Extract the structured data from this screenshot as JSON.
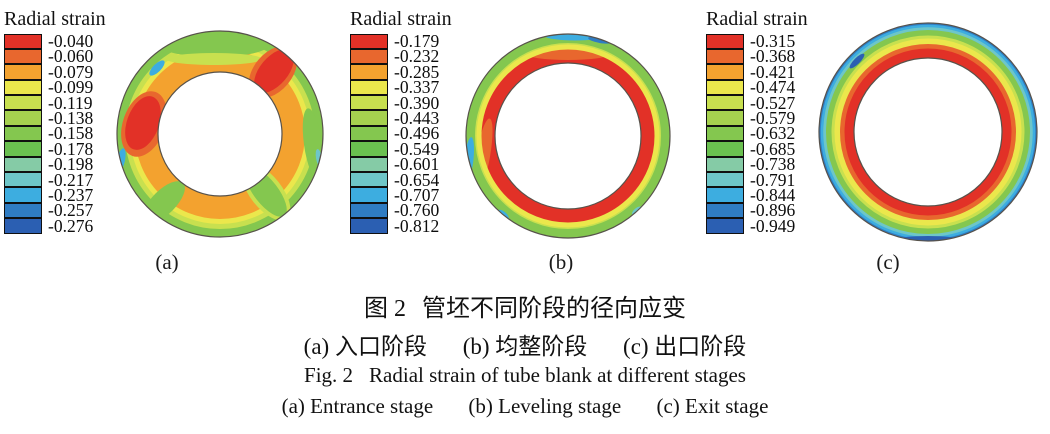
{
  "palette": [
    "#e23127",
    "#e8672e",
    "#f3a22f",
    "#ebe74c",
    "#c8e04f",
    "#a6d14f",
    "#84c74f",
    "#6ac050",
    "#85cba6",
    "#6ec6c8",
    "#3dade0",
    "#2f7cc3",
    "#2b5fb2"
  ],
  "outline_color": "#57524b",
  "panels": [
    {
      "key": "a",
      "sub_label": "(a)",
      "legend_title": "Radial strain",
      "legend_values": [
        "-0.040",
        "-0.060",
        "-0.079",
        "-0.099",
        "-0.119",
        "-0.138",
        "-0.158",
        "-0.178",
        "-0.198",
        "-0.217",
        "-0.237",
        "-0.257",
        "-0.276"
      ]
    },
    {
      "key": "b",
      "sub_label": "(b)",
      "legend_title": "Radial strain",
      "legend_values": [
        "-0.179",
        "-0.232",
        "-0.285",
        "-0.337",
        "-0.390",
        "-0.443",
        "-0.496",
        "-0.549",
        "-0.601",
        "-0.654",
        "-0.707",
        "-0.760",
        "-0.812"
      ]
    },
    {
      "key": "c",
      "sub_label": "(c)",
      "legend_title": "Radial strain",
      "legend_values": [
        "-0.315",
        "-0.368",
        "-0.421",
        "-0.474",
        "-0.527",
        "-0.579",
        "-0.632",
        "-0.685",
        "-0.738",
        "-0.791",
        "-0.844",
        "-0.896",
        "-0.949"
      ]
    }
  ],
  "captions": {
    "zh_fig_label": "图 2",
    "zh_title": "管坯不同阶段的径向应变",
    "zh_sub": [
      "(a) 入口阶段",
      "(b) 均整阶段",
      "(c) 出口阶段"
    ],
    "en_fig_label": "Fig. 2",
    "en_title": "Radial strain of tube blank at different stages",
    "en_sub": [
      "(a) Entrance stage",
      "(b) Leveling stage",
      "(c) Exit stage"
    ]
  },
  "chart_data": [
    {
      "type": "heatmap",
      "title": "Radial strain",
      "panel": "(a)",
      "stage_zh": "入口阶段",
      "stage_en": "Entrance stage",
      "geometry": "tube ring cross-section contour plot",
      "levels": [
        -0.04,
        -0.06,
        -0.079,
        -0.099,
        -0.119,
        -0.138,
        -0.158,
        -0.178,
        -0.198,
        -0.217,
        -0.237,
        -0.257,
        -0.276
      ],
      "range": [
        -0.276,
        -0.04
      ],
      "legend_position": "left",
      "distribution": "ring mostly orange (~-0.08 to -0.10) in inner two-thirds, green rim (~-0.14 to -0.18) on outer surface, red maxima (~-0.04 to -0.06) at left mid-wall and upper-right through-wall, small cyan spots (~-0.22) on outer edge"
    },
    {
      "type": "heatmap",
      "title": "Radial strain",
      "panel": "(b)",
      "stage_zh": "均整阶段",
      "stage_en": "Leveling stage",
      "geometry": "tube ring cross-section contour plot",
      "levels": [
        -0.179,
        -0.232,
        -0.285,
        -0.337,
        -0.39,
        -0.443,
        -0.496,
        -0.549,
        -0.601,
        -0.654,
        -0.707,
        -0.76,
        -0.812
      ],
      "range": [
        -0.812,
        -0.179
      ],
      "legend_position": "left",
      "distribution": "thick red band (~-0.18 to -0.23) over inner two-thirds of wall, thin yellow transition, green outer band (~-0.44 to -0.55), cyan/blue patches (~-0.71 to -0.76) on outer edge at top and left"
    },
    {
      "type": "heatmap",
      "title": "Radial strain",
      "panel": "(c)",
      "stage_zh": "出口阶段",
      "stage_en": "Exit stage",
      "geometry": "tube ring cross-section contour plot",
      "levels": [
        -0.315,
        -0.368,
        -0.421,
        -0.474,
        -0.527,
        -0.579,
        -0.632,
        -0.685,
        -0.738,
        -0.791,
        -0.844,
        -0.896,
        -0.949
      ],
      "range": [
        -0.949,
        -0.315
      ],
      "legend_position": "left",
      "distribution": "smooth concentric bands: red (~-0.32 to -0.37) on inner half of wall grading outward through orange, yellow, green, teal, cyan to blue (~-0.90 to -0.95) at the outer surface"
    }
  ]
}
